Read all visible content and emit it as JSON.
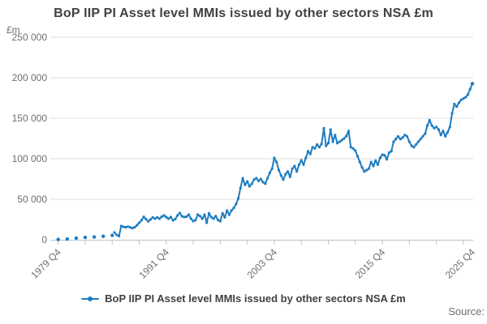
{
  "title": "BoP IIP PI Asset level MMIs issued by other sectors NSA £m",
  "y_axis_unit": "£m",
  "source_label": "Source:",
  "legend": {
    "label": "BoP IIP PI Asset level MMIs issued by other sectors NSA £m"
  },
  "colors": {
    "line": "#1e7cc1",
    "grid": "#dcdcdc",
    "axis": "#b9c5d0",
    "axis_text": "#6e6e6e",
    "title_text": "#414042"
  },
  "chart_data": {
    "type": "line",
    "title": "BoP IIP PI Asset level MMIs issued by other sectors NSA £m",
    "xlabel": "",
    "ylabel": "£m",
    "ylim": [
      0,
      250000
    ],
    "x_range": [
      "1979 Q4",
      "2025 Q4"
    ],
    "grid": true,
    "legend_position": "bottom",
    "line_color": "#1e7cc1",
    "y_ticks": [
      {
        "v": 0,
        "label": "0"
      },
      {
        "v": 50000,
        "label": "50 000"
      },
      {
        "v": 100000,
        "label": "100 000"
      },
      {
        "v": 150000,
        "label": "150 000"
      },
      {
        "v": 200000,
        "label": "200 000"
      },
      {
        "v": 250000,
        "label": "250 000"
      }
    ],
    "x_ticks": [
      {
        "p": "1979 Q4",
        "label": "1979 Q4"
      },
      {
        "p": "1982 Q4"
      },
      {
        "p": "1985 Q4"
      },
      {
        "p": "1988 Q4"
      },
      {
        "p": "1991 Q4",
        "label": "1991 Q4"
      },
      {
        "p": "1994 Q4"
      },
      {
        "p": "1997 Q4"
      },
      {
        "p": "2000 Q4"
      },
      {
        "p": "2003 Q4",
        "label": "2003 Q4"
      },
      {
        "p": "2006 Q4"
      },
      {
        "p": "2009 Q4"
      },
      {
        "p": "2012 Q4"
      },
      {
        "p": "2015 Q4",
        "label": "2015 Q4"
      },
      {
        "p": "2018 Q4"
      },
      {
        "p": "2021 Q4"
      },
      {
        "p": "2024 Q4"
      },
      {
        "p": "2025 Q4",
        "label": "2025 Q4",
        "tick": false
      }
    ],
    "series": [
      {
        "name": "BoP IIP PI Asset level MMIs issued by other sectors NSA £m",
        "line_from": "1986 Q1",
        "points": [
          [
            "1979 Q4",
            400
          ],
          [
            "1980 Q4",
            900
          ],
          [
            "1981 Q4",
            2000
          ],
          [
            "1982 Q4",
            2900
          ],
          [
            "1983 Q4",
            3400
          ],
          [
            "1984 Q4",
            4300
          ],
          [
            "1985 Q4",
            5400
          ],
          [
            "1986 Q1",
            9000
          ],
          [
            "1986 Q2",
            6000
          ],
          [
            "1986 Q3",
            4500
          ],
          [
            "1986 Q4",
            17000
          ],
          [
            "1987 Q1",
            16000
          ],
          [
            "1987 Q2",
            15500
          ],
          [
            "1987 Q3",
            16200
          ],
          [
            "1987 Q4",
            15300
          ],
          [
            "1988 Q1",
            14300
          ],
          [
            "1988 Q2",
            15500
          ],
          [
            "1988 Q3",
            18000
          ],
          [
            "1988 Q4",
            21000
          ],
          [
            "1989 Q1",
            24000
          ],
          [
            "1989 Q2",
            28300
          ],
          [
            "1989 Q3",
            25500
          ],
          [
            "1989 Q4",
            22700
          ],
          [
            "1990 Q1",
            25000
          ],
          [
            "1990 Q2",
            27700
          ],
          [
            "1990 Q3",
            26000
          ],
          [
            "1990 Q4",
            27700
          ],
          [
            "1991 Q1",
            26000
          ],
          [
            "1991 Q2",
            28500
          ],
          [
            "1991 Q3",
            30000
          ],
          [
            "1991 Q4",
            28000
          ],
          [
            "1992 Q1",
            26000
          ],
          [
            "1992 Q2",
            28000
          ],
          [
            "1992 Q3",
            24000
          ],
          [
            "1992 Q4",
            25500
          ],
          [
            "1993 Q1",
            30000
          ],
          [
            "1993 Q2",
            33000
          ],
          [
            "1993 Q3",
            29000
          ],
          [
            "1993 Q4",
            28000
          ],
          [
            "1994 Q1",
            28500
          ],
          [
            "1994 Q2",
            31000
          ],
          [
            "1994 Q3",
            26000
          ],
          [
            "1994 Q4",
            23000
          ],
          [
            "1995 Q1",
            24300
          ],
          [
            "1995 Q2",
            31000
          ],
          [
            "1995 Q3",
            29300
          ],
          [
            "1995 Q4",
            26000
          ],
          [
            "1996 Q1",
            31000
          ],
          [
            "1996 Q2",
            21000
          ],
          [
            "1996 Q3",
            32700
          ],
          [
            "1996 Q4",
            28000
          ],
          [
            "1997 Q1",
            26000
          ],
          [
            "1997 Q2",
            29300
          ],
          [
            "1997 Q3",
            24300
          ],
          [
            "1997 Q4",
            23000
          ],
          [
            "1998 Q1",
            32700
          ],
          [
            "1998 Q2",
            27700
          ],
          [
            "1998 Q3",
            36000
          ],
          [
            "1998 Q4",
            31000
          ],
          [
            "1999 Q1",
            36000
          ],
          [
            "1999 Q2",
            39300
          ],
          [
            "1999 Q3",
            44000
          ],
          [
            "1999 Q4",
            51000
          ],
          [
            "2000 Q1",
            64000
          ],
          [
            "2000 Q2",
            76000
          ],
          [
            "2000 Q3",
            67700
          ],
          [
            "2000 Q4",
            72000
          ],
          [
            "2001 Q1",
            66000
          ],
          [
            "2001 Q2",
            69000
          ],
          [
            "2001 Q3",
            74300
          ],
          [
            "2001 Q4",
            76000
          ],
          [
            "2002 Q1",
            72700
          ],
          [
            "2002 Q2",
            75000
          ],
          [
            "2002 Q3",
            71000
          ],
          [
            "2002 Q4",
            69300
          ],
          [
            "2003 Q1",
            76000
          ],
          [
            "2003 Q2",
            82700
          ],
          [
            "2003 Q3",
            87700
          ],
          [
            "2003 Q4",
            101000
          ],
          [
            "2004 Q1",
            96000
          ],
          [
            "2004 Q2",
            86000
          ],
          [
            "2004 Q3",
            79300
          ],
          [
            "2004 Q4",
            74300
          ],
          [
            "2005 Q1",
            81000
          ],
          [
            "2005 Q2",
            84300
          ],
          [
            "2005 Q3",
            77700
          ],
          [
            "2005 Q4",
            87700
          ],
          [
            "2006 Q1",
            91000
          ],
          [
            "2006 Q2",
            84300
          ],
          [
            "2006 Q3",
            92700
          ],
          [
            "2006 Q4",
            98000
          ],
          [
            "2007 Q1",
            92700
          ],
          [
            "2007 Q2",
            101000
          ],
          [
            "2007 Q3",
            109300
          ],
          [
            "2007 Q4",
            106000
          ],
          [
            "2008 Q1",
            114300
          ],
          [
            "2008 Q2",
            112700
          ],
          [
            "2008 Q3",
            117700
          ],
          [
            "2008 Q4",
            114300
          ],
          [
            "2009 Q1",
            118300
          ],
          [
            "2009 Q2",
            137700
          ],
          [
            "2009 Q3",
            116000
          ],
          [
            "2009 Q4",
            119300
          ],
          [
            "2010 Q1",
            136000
          ],
          [
            "2010 Q2",
            121000
          ],
          [
            "2010 Q3",
            129300
          ],
          [
            "2010 Q4",
            119300
          ],
          [
            "2011 Q1",
            121000
          ],
          [
            "2011 Q2",
            123000
          ],
          [
            "2011 Q3",
            125000
          ],
          [
            "2011 Q4",
            128000
          ],
          [
            "2012 Q1",
            134300
          ],
          [
            "2012 Q2",
            114300
          ],
          [
            "2012 Q3",
            112700
          ],
          [
            "2012 Q4",
            110000
          ],
          [
            "2013 Q1",
            103000
          ],
          [
            "2013 Q2",
            96000
          ],
          [
            "2013 Q3",
            89300
          ],
          [
            "2013 Q4",
            84300
          ],
          [
            "2014 Q1",
            86000
          ],
          [
            "2014 Q2",
            87700
          ],
          [
            "2014 Q3",
            96000
          ],
          [
            "2014 Q4",
            91000
          ],
          [
            "2015 Q1",
            97700
          ],
          [
            "2015 Q2",
            92700
          ],
          [
            "2015 Q3",
            101000
          ],
          [
            "2015 Q4",
            105000
          ],
          [
            "2016 Q1",
            104300
          ],
          [
            "2016 Q2",
            99300
          ],
          [
            "2016 Q3",
            107700
          ],
          [
            "2016 Q4",
            109300
          ],
          [
            "2017 Q1",
            121000
          ],
          [
            "2017 Q2",
            124300
          ],
          [
            "2017 Q3",
            127700
          ],
          [
            "2017 Q4",
            124300
          ],
          [
            "2018 Q1",
            126000
          ],
          [
            "2018 Q2",
            129300
          ],
          [
            "2018 Q3",
            127700
          ],
          [
            "2018 Q4",
            121000
          ],
          [
            "2019 Q1",
            116000
          ],
          [
            "2019 Q2",
            114300
          ],
          [
            "2019 Q3",
            117700
          ],
          [
            "2019 Q4",
            121000
          ],
          [
            "2020 Q1",
            124300
          ],
          [
            "2020 Q2",
            127700
          ],
          [
            "2020 Q3",
            131000
          ],
          [
            "2020 Q4",
            141000
          ],
          [
            "2021 Q1",
            147700
          ],
          [
            "2021 Q2",
            141000
          ],
          [
            "2021 Q3",
            137700
          ],
          [
            "2021 Q4",
            139300
          ],
          [
            "2022 Q1",
            136000
          ],
          [
            "2022 Q2",
            129300
          ],
          [
            "2022 Q3",
            134300
          ],
          [
            "2022 Q4",
            127700
          ],
          [
            "2023 Q1",
            132700
          ],
          [
            "2023 Q2",
            139300
          ],
          [
            "2023 Q3",
            156000
          ],
          [
            "2023 Q4",
            167700
          ],
          [
            "2024 Q1",
            164300
          ],
          [
            "2024 Q2",
            169000
          ],
          [
            "2024 Q3",
            172700
          ],
          [
            "2024 Q4",
            174300
          ],
          [
            "2025 Q1",
            176000
          ],
          [
            "2025 Q2",
            179300
          ],
          [
            "2025 Q3",
            186000
          ],
          [
            "2025 Q4",
            192700
          ]
        ]
      }
    ]
  }
}
